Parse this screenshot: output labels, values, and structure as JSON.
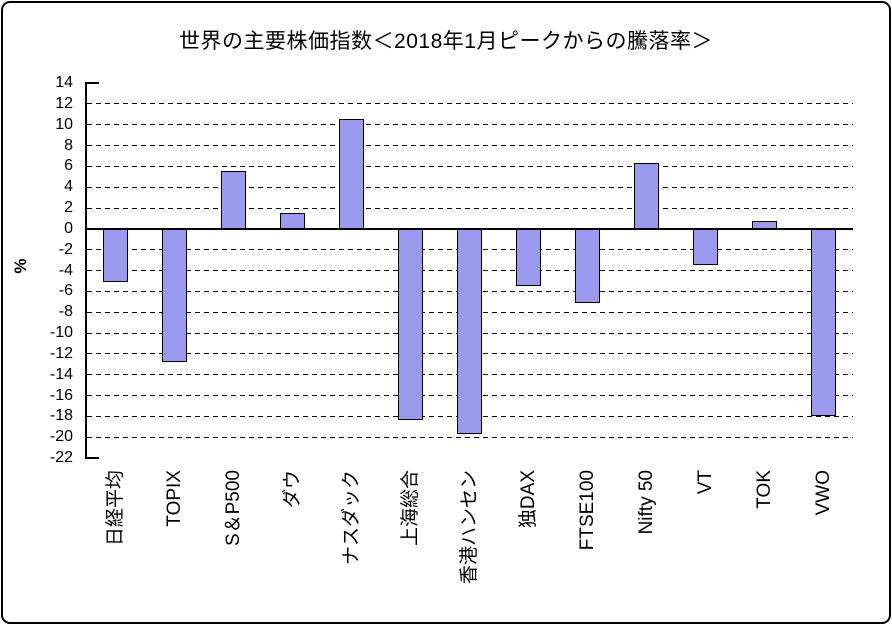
{
  "window": {
    "background_color": "#FFFFFF",
    "border_color": "#000000"
  },
  "chart_data": {
    "type": "bar",
    "title": "世界の主要株価指数＜2018年1月ピークからの騰落率＞",
    "ylabel": "%",
    "xlabel": "",
    "categories": [
      "日経平均",
      "TOPIX",
      "S＆P500",
      "ダウ",
      "ナスダック",
      "上海総合",
      "香港ハンセン",
      "独DAX",
      "FTSE100",
      "Nifty 50",
      "VT",
      "TOK",
      "VWO"
    ],
    "values": [
      -5.1,
      -12.8,
      5.6,
      1.5,
      10.5,
      -18.4,
      -19.7,
      -5.5,
      -7.1,
      6.3,
      -3.5,
      0.8,
      -18.0
    ],
    "ylim": [
      -22,
      14
    ],
    "ytick_step": 2,
    "yticks": [
      14,
      12,
      10,
      8,
      6,
      4,
      2,
      0,
      -2,
      -4,
      -6,
      -8,
      -10,
      -12,
      -14,
      -16,
      -18,
      -20,
      -22
    ],
    "grid": "horizontal-dashed",
    "zero_line": "solid",
    "legend": "none",
    "x_labels_rotation_deg": 90,
    "colors": {
      "bar_fill": "#9999EE",
      "bar_border": "#000000",
      "axis": "#000000",
      "text": "#000000"
    }
  }
}
